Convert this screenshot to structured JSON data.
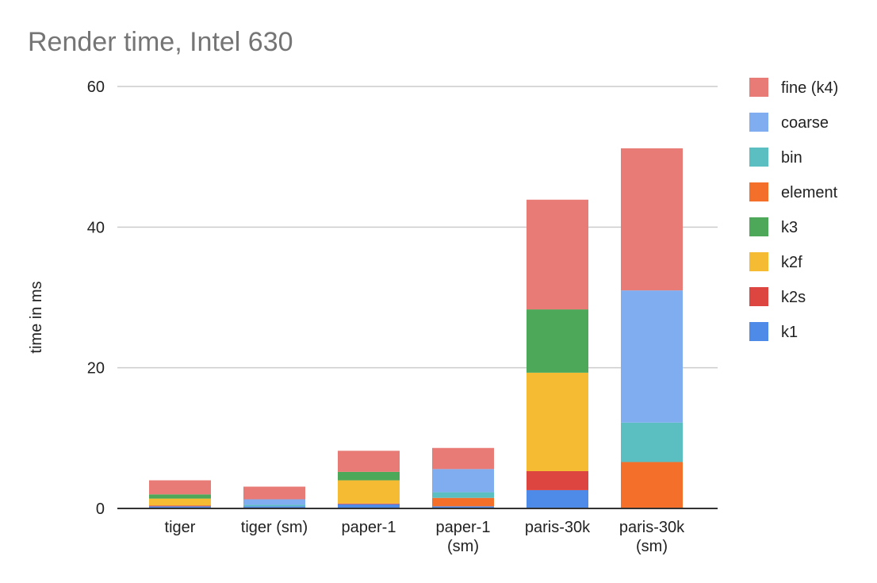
{
  "chart_data": {
    "type": "bar",
    "stacked": true,
    "title": "Render time, Intel 630",
    "xlabel": "",
    "ylabel": "time in ms",
    "ylim": [
      0,
      60
    ],
    "yticks": [
      0,
      20,
      40,
      60
    ],
    "grid": true,
    "legend_position": "right",
    "categories": [
      [
        "tiger"
      ],
      [
        "tiger (sm)"
      ],
      [
        "paper-1"
      ],
      [
        "paper-1",
        "(sm)"
      ],
      [
        "paris-30k"
      ],
      [
        "paris-30k",
        "(sm)"
      ]
    ],
    "series": [
      {
        "name": "k1",
        "color": "#4e8ae8",
        "values": [
          0.3,
          0.3,
          0.6,
          0.3,
          2.6,
          0.0
        ]
      },
      {
        "name": "k2s",
        "color": "#dd4540",
        "values": [
          0.1,
          0.0,
          0.1,
          0.0,
          2.7,
          0.0
        ]
      },
      {
        "name": "k2f",
        "color": "#f5bb32",
        "values": [
          1.0,
          0.0,
          3.3,
          0.0,
          14.0,
          0.0
        ]
      },
      {
        "name": "k3",
        "color": "#4ea85a",
        "values": [
          0.6,
          0.0,
          1.2,
          0.0,
          9.0,
          0.0
        ]
      },
      {
        "name": "element",
        "color": "#f36f2a",
        "values": [
          0.0,
          0.0,
          0.0,
          1.2,
          0.0,
          6.6
        ]
      },
      {
        "name": "bin",
        "color": "#5bbfc1",
        "values": [
          0.0,
          0.2,
          0.0,
          0.8,
          0.0,
          5.6
        ]
      },
      {
        "name": "coarse",
        "color": "#7fadf0",
        "values": [
          0.0,
          0.8,
          0.0,
          3.3,
          0.0,
          18.8
        ]
      },
      {
        "name": "fine (k4)",
        "color": "#e87b75",
        "values": [
          2.0,
          1.8,
          3.0,
          3.0,
          15.6,
          20.2
        ]
      }
    ]
  }
}
